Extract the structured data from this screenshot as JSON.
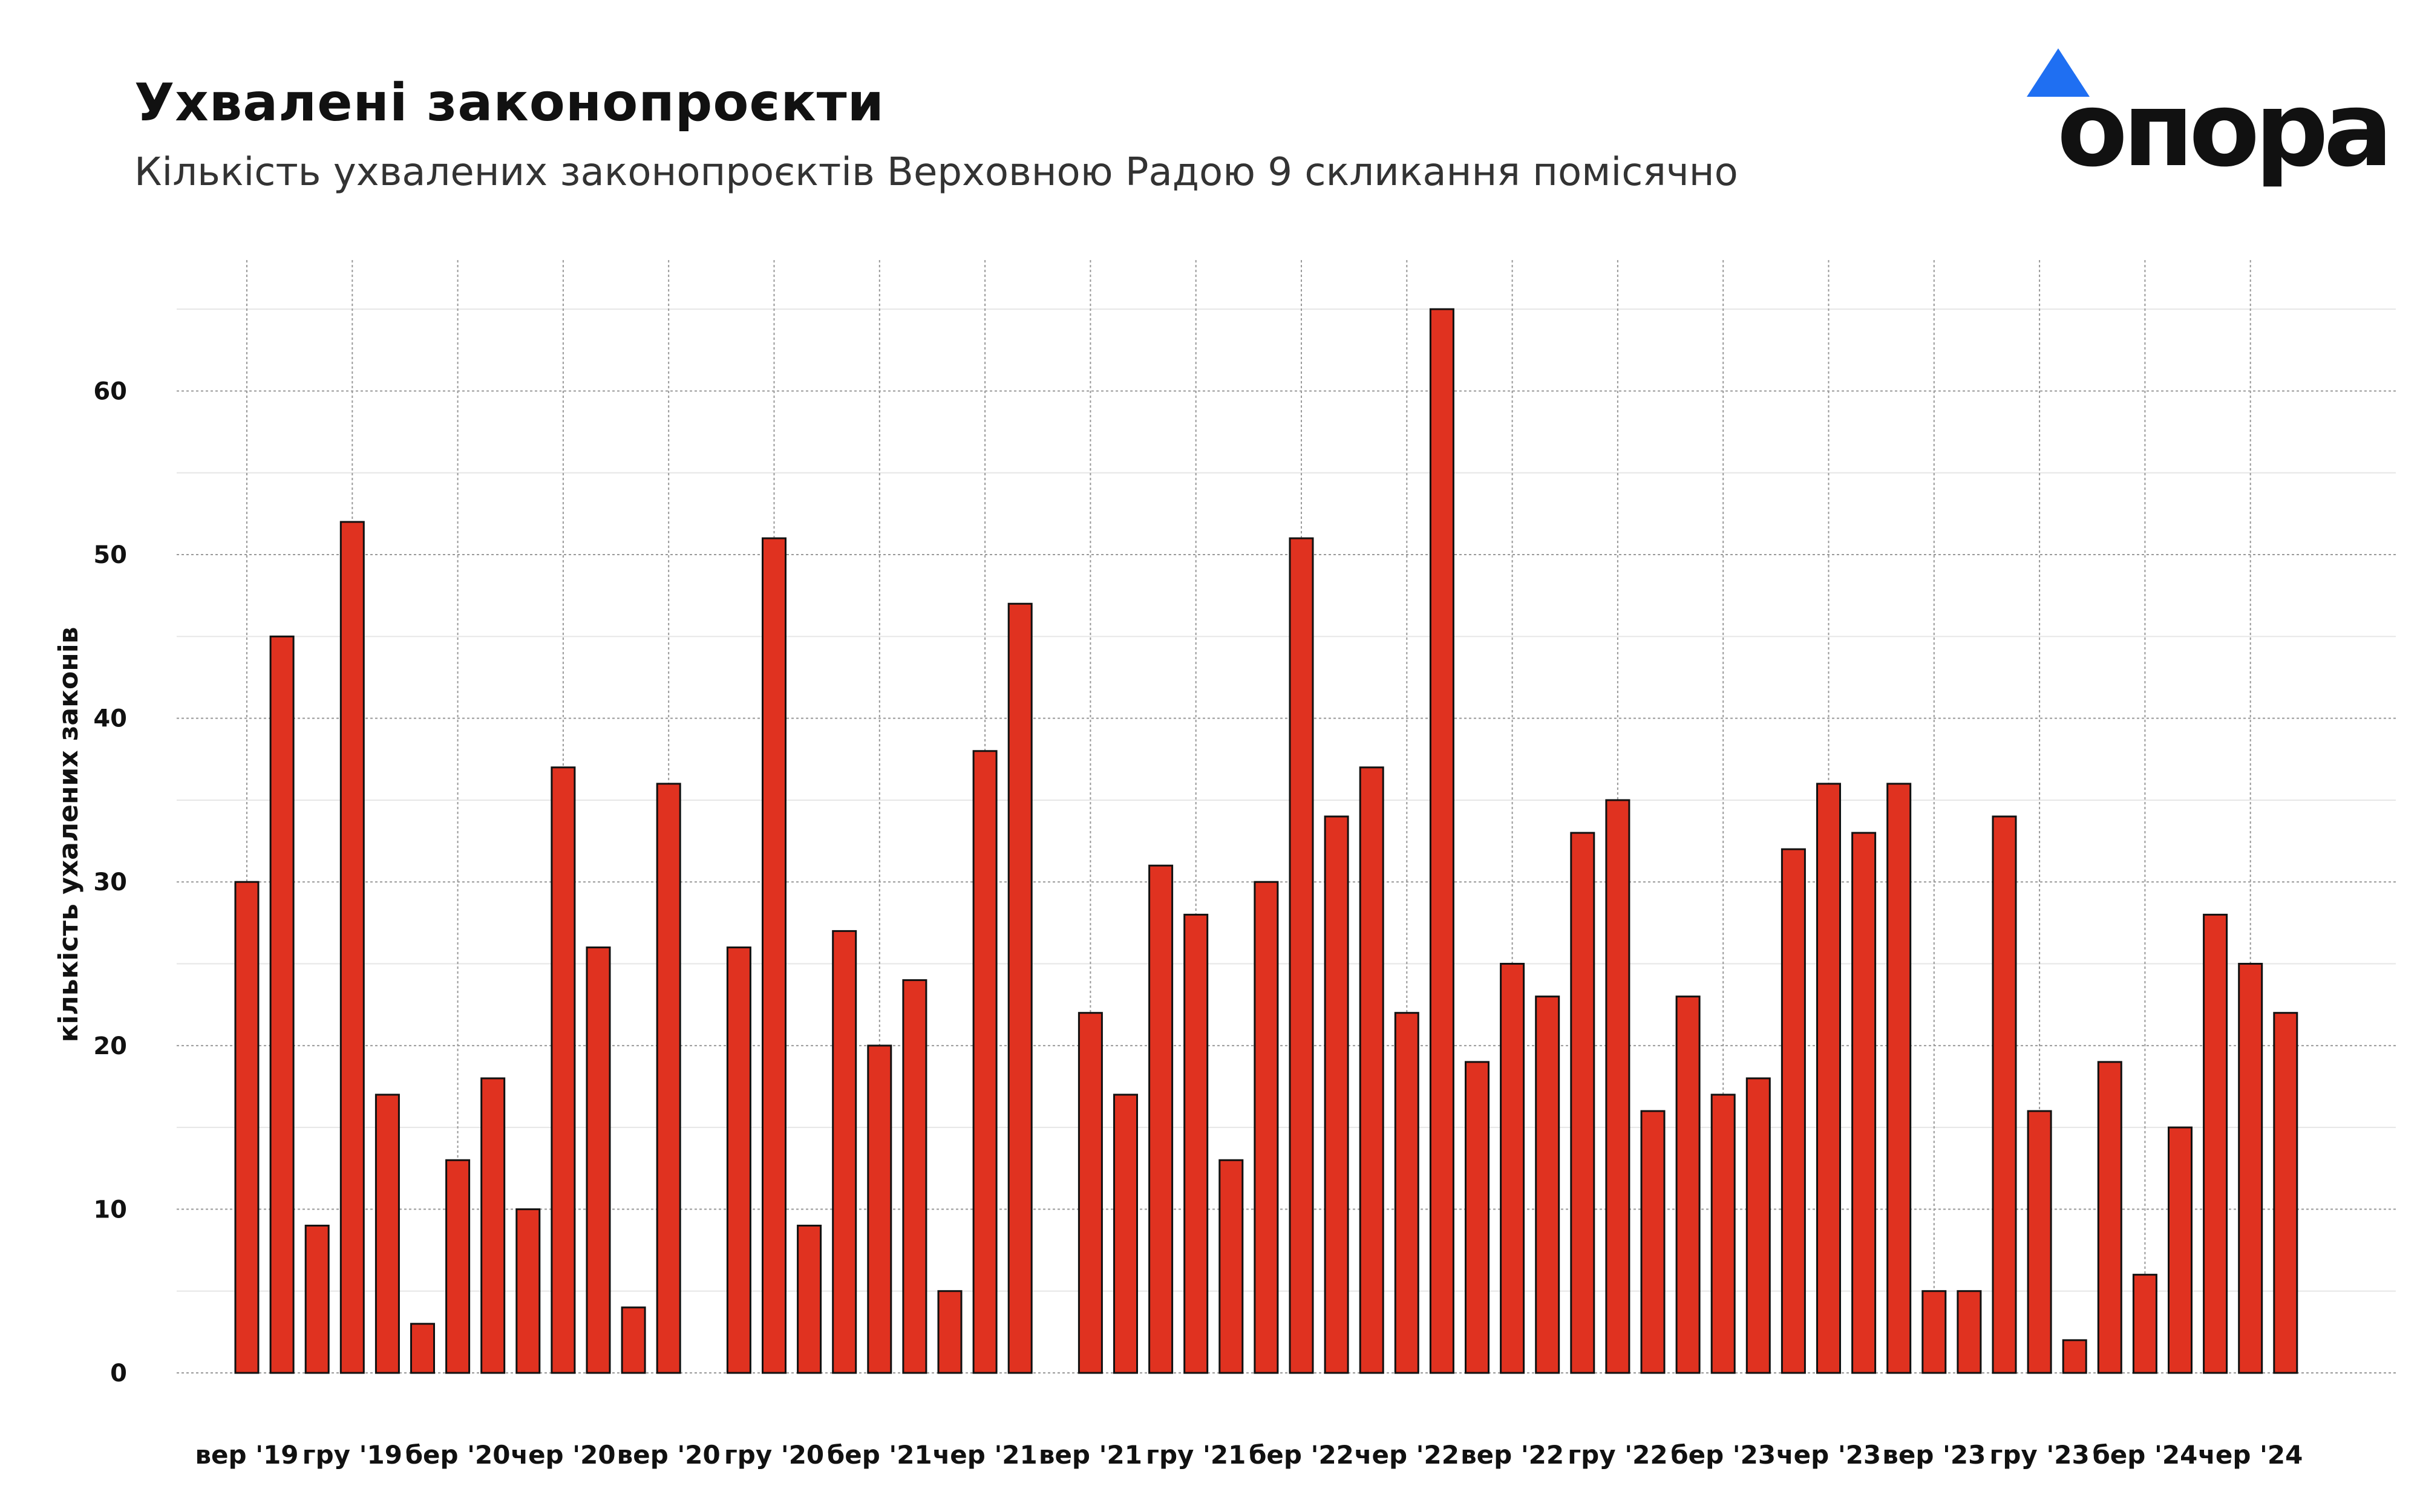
{
  "header": {
    "title": "Ухвалені законопроєкти",
    "subtitle": "Кількість ухвалених законопроєктів Верховною Радою 9 скликання помісячно"
  },
  "logo": {
    "text": "опора",
    "triangle_color": "#1f6ff2",
    "icon": "triangle-logo-icon"
  },
  "chart_data": {
    "type": "bar",
    "title": "Ухвалені законопроєкти",
    "subtitle": "Кількість ухвалених законопроєктів Верховною Радою 9 скликання помісячно",
    "ylabel": "кількість ухалених законів",
    "xlabel": "",
    "ylim": [
      0,
      68
    ],
    "yticks": [
      0,
      10,
      20,
      30,
      40,
      50,
      60
    ],
    "grid": true,
    "bar_color": "#e03220",
    "bar_edge_color": "#111111",
    "x_ticks": [
      {
        "label": "вер '19",
        "index": 0
      },
      {
        "label": "гру '19",
        "index": 3
      },
      {
        "label": "бер '20",
        "index": 6
      },
      {
        "label": "чер '20",
        "index": 9
      },
      {
        "label": "вер '20",
        "index": 12
      },
      {
        "label": "гру '20",
        "index": 15
      },
      {
        "label": "бер '21",
        "index": 18
      },
      {
        "label": "чер '21",
        "index": 21
      },
      {
        "label": "вер '21",
        "index": 24
      },
      {
        "label": "гру '21",
        "index": 27
      },
      {
        "label": "бер '22",
        "index": 30
      },
      {
        "label": "чер '22",
        "index": 33
      },
      {
        "label": "вер '22",
        "index": 36
      },
      {
        "label": "гру '22",
        "index": 39
      },
      {
        "label": "бер '23",
        "index": 42
      },
      {
        "label": "чер '23",
        "index": 45
      },
      {
        "label": "вер '23",
        "index": 48
      },
      {
        "label": "гру '23",
        "index": 51
      },
      {
        "label": "бер '24",
        "index": 54
      },
      {
        "label": "чер '24",
        "index": 57
      }
    ],
    "series": [
      {
        "values": [
          30,
          45,
          9,
          52,
          17,
          3,
          13,
          18,
          10,
          37,
          26,
          4,
          36,
          0,
          26,
          51,
          9,
          27,
          20,
          24,
          5,
          38,
          47,
          0,
          22,
          17,
          31,
          28,
          13,
          30,
          51,
          34,
          37,
          22,
          65,
          19,
          25,
          23,
          33,
          35,
          16,
          23,
          17,
          18,
          32,
          36,
          33,
          36,
          5,
          5,
          34,
          16,
          2,
          19,
          6,
          15,
          28,
          25,
          22
        ]
      }
    ]
  }
}
